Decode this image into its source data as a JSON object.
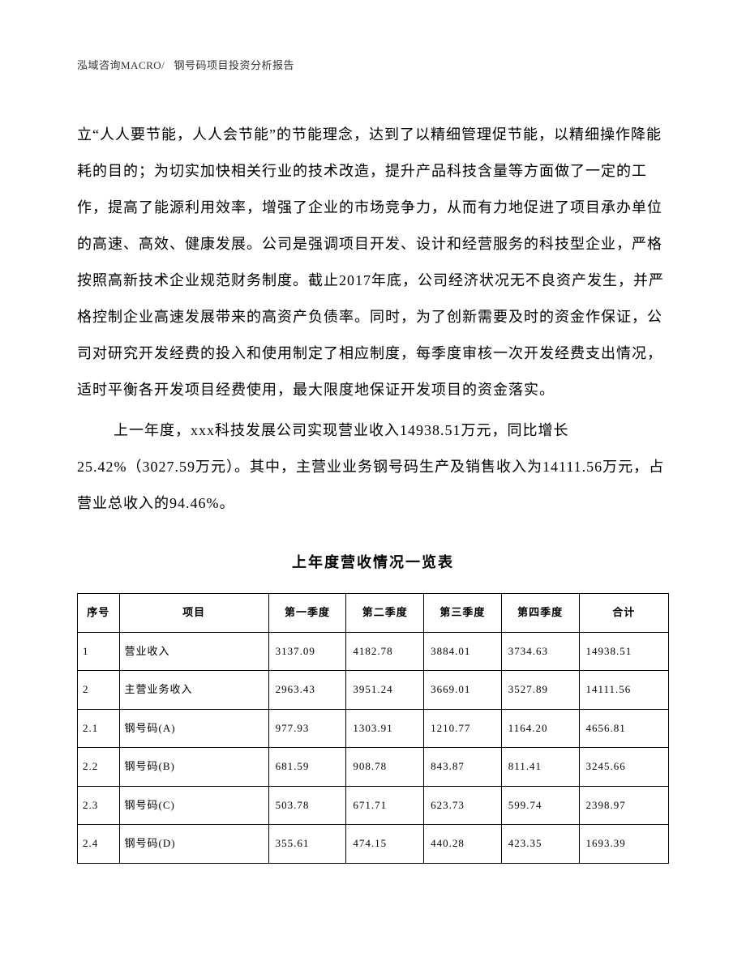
{
  "header": {
    "company": "泓域咨询MACRO/",
    "title": "钢号码项目投资分析报告"
  },
  "paragraphs": {
    "p1": "立“人人要节能，人人会节能”的节能理念，达到了以精细管理促节能，以精细操作降能耗的目的；为切实加快相关行业的技术改造，提升产品科技含量等方面做了一定的工作，提高了能源利用效率，增强了企业的市场竞争力，从而有力地促进了项目承办单位的高速、高效、健康发展。公司是强调项目开发、设计和经营服务的科技型企业，严格按照高新技术企业规范财务制度。截止2017年底，公司经济状况无不良资产发生，并严格控制企业高速发展带来的高资产负债率。同时，为了创新需要及时的资金作保证，公司对研究开发经费的投入和使用制定了相应制度，每季度审核一次开发经费支出情况，适时平衡各开发项目经费使用，最大限度地保证开发项目的资金落实。",
    "p2": "上一年度，xxx科技发展公司实现营业收入14938.51万元，同比增长25.42%（3027.59万元）。其中，主营业业务钢号码生产及销售收入为14111.56万元，占营业总收入的94.46%。"
  },
  "table": {
    "title": "上年度营收情况一览表",
    "headers": {
      "seq": "序号",
      "item": "项目",
      "q1": "第一季度",
      "q2": "第二季度",
      "q3": "第三季度",
      "q4": "第四季度",
      "total": "合计"
    },
    "rows": [
      {
        "seq": "1",
        "item": "营业收入",
        "q1": "3137.09",
        "q2": "4182.78",
        "q3": "3884.01",
        "q4": "3734.63",
        "total": "14938.51"
      },
      {
        "seq": "2",
        "item": "主营业务收入",
        "q1": "2963.43",
        "q2": "3951.24",
        "q3": "3669.01",
        "q4": "3527.89",
        "total": "14111.56"
      },
      {
        "seq": "2.1",
        "item": "钢号码(A)",
        "q1": "977.93",
        "q2": "1303.91",
        "q3": "1210.77",
        "q4": "1164.20",
        "total": "4656.81"
      },
      {
        "seq": "2.2",
        "item": "钢号码(B)",
        "q1": "681.59",
        "q2": "908.78",
        "q3": "843.87",
        "q4": "811.41",
        "total": "3245.66"
      },
      {
        "seq": "2.3",
        "item": "钢号码(C)",
        "q1": "503.78",
        "q2": "671.71",
        "q3": "623.73",
        "q4": "599.74",
        "total": "2398.97"
      },
      {
        "seq": "2.4",
        "item": "钢号码(D)",
        "q1": "355.61",
        "q2": "474.15",
        "q3": "440.28",
        "q4": "423.35",
        "total": "1693.39"
      }
    ]
  }
}
